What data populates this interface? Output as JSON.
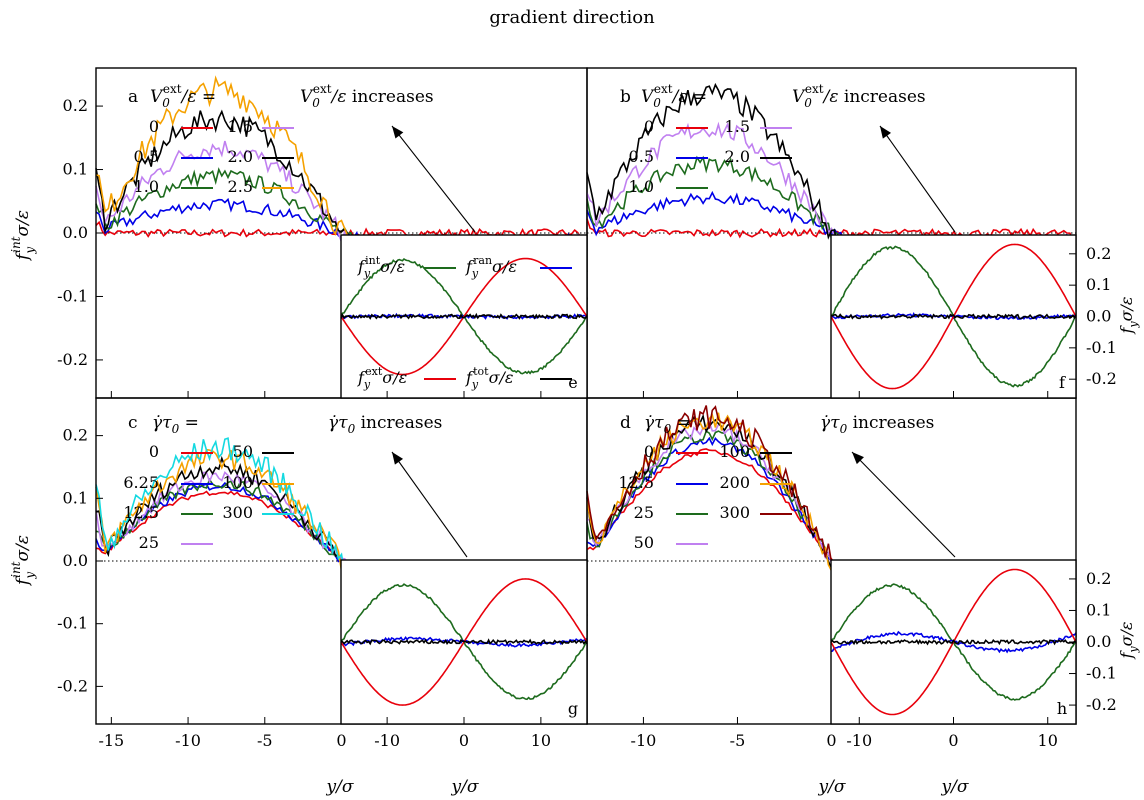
{
  "figure": {
    "title": "gradient direction",
    "ylabel_main": "f_y^int σ/ε",
    "ylabel_inset": "f_y σ/ε",
    "xlabel": "y/σ"
  },
  "colors": {
    "red": "#e8000b",
    "blue": "#0000e8",
    "green": "#1d6b1d",
    "violet": "#c080f0",
    "black": "#000000",
    "orange": "#f5a100",
    "cyan": "#14d9e0",
    "darkred": "#8b0000"
  },
  "chart_data": [
    {
      "panel": "a",
      "type": "line",
      "xlabel": "y/σ",
      "ylabel": "f_y^int σ/ε",
      "xlim": [
        -16,
        16
      ],
      "ylim": [
        -0.26,
        0.26
      ],
      "xticks": [
        -15,
        -10,
        -5,
        0
      ],
      "yticks": [
        -0.2,
        -0.1,
        0.0,
        0.1,
        0.2
      ],
      "legend_title": "V_0^ext/ε =",
      "annotation": "V_0^ext/ε increases",
      "series": [
        {
          "name": "0",
          "amplitude": 0.0
        },
        {
          "name": "0.5",
          "amplitude": 0.045
        },
        {
          "name": "1.0",
          "amplitude": 0.09
        },
        {
          "name": "1.5",
          "amplitude": 0.135
        },
        {
          "name": "2.0",
          "amplitude": 0.18
        },
        {
          "name": "2.5",
          "amplitude": 0.225
        }
      ]
    },
    {
      "panel": "b",
      "type": "line",
      "xlabel": "y/σ",
      "ylabel": "f_y^int σ/ε",
      "xlim": [
        -13,
        13
      ],
      "ylim": [
        -0.26,
        0.26
      ],
      "xticks": [
        -10,
        -5,
        0
      ],
      "yticks": [
        -0.2,
        -0.1,
        0.0,
        0.1,
        0.2
      ],
      "legend_title": "V_0^ext/ε =",
      "annotation": "V_0^ext/ε increases",
      "series": [
        {
          "name": "0",
          "amplitude": 0.0
        },
        {
          "name": "0.5",
          "amplitude": 0.055
        },
        {
          "name": "1.0",
          "amplitude": 0.11
        },
        {
          "name": "1.5",
          "amplitude": 0.165
        },
        {
          "name": "2.0",
          "amplitude": 0.22
        }
      ]
    },
    {
      "panel": "c",
      "type": "line",
      "xlabel": "y/σ",
      "ylabel": "f_y^int σ/ε",
      "xlim": [
        -16,
        16
      ],
      "ylim": [
        -0.26,
        0.26
      ],
      "xticks": [
        -15,
        -10,
        -5,
        0
      ],
      "yticks": [
        -0.2,
        -0.1,
        0.0,
        0.1,
        0.2
      ],
      "legend_title": "γ̇τ0 =",
      "annotation": "γ̇τ0 increases",
      "series": [
        {
          "name": "0",
          "amplitude": 0.11
        },
        {
          "name": "6.25",
          "amplitude": 0.12
        },
        {
          "name": "12.5",
          "amplitude": 0.125
        },
        {
          "name": "25",
          "amplitude": 0.135
        },
        {
          "name": "50",
          "amplitude": 0.15
        },
        {
          "name": "100",
          "amplitude": 0.165
        },
        {
          "name": "300",
          "amplitude": 0.18
        }
      ]
    },
    {
      "panel": "d",
      "type": "line",
      "xlabel": "y/σ",
      "ylabel": "f_y^int σ/ε",
      "xlim": [
        -13,
        13
      ],
      "ylim": [
        -0.26,
        0.26
      ],
      "xticks": [
        -10,
        -5,
        0
      ],
      "yticks": [
        -0.2,
        -0.1,
        0.0,
        0.1,
        0.2
      ],
      "legend_title": "γ̇τ0 =",
      "annotation": "γ̇τ0 increases",
      "series": [
        {
          "name": "0",
          "amplitude": 0.175
        },
        {
          "name": "12.5",
          "amplitude": 0.19
        },
        {
          "name": "25",
          "amplitude": 0.2
        },
        {
          "name": "50",
          "amplitude": 0.21
        },
        {
          "name": "100",
          "amplitude": 0.22
        },
        {
          "name": "200",
          "amplitude": 0.225
        },
        {
          "name": "300",
          "amplitude": 0.23
        }
      ]
    },
    {
      "panel": "e",
      "type": "line",
      "xlabel": "y/σ",
      "ylabel": "f_y σ/ε",
      "xlim": [
        -16,
        16
      ],
      "ylim": [
        -0.26,
        0.26
      ],
      "xticks": [
        -10,
        0,
        10
      ],
      "yticks": [
        -0.2,
        -0.1,
        0.0,
        0.1,
        0.2
      ],
      "legend": [
        "f_y^int σ/ε",
        "f_y^ran σ/ε",
        "f_y^ext σ/ε",
        "f_y^tot σ/ε"
      ],
      "series": [
        {
          "name": "f_y^int σ/ε",
          "amplitude": 0.18
        },
        {
          "name": "f_y^ran σ/ε",
          "amplitude": 0.005
        },
        {
          "name": "f_y^ext σ/ε",
          "amplitude": 0.185
        },
        {
          "name": "f_y^tot σ/ε",
          "amplitude": 0.0
        }
      ]
    },
    {
      "panel": "f",
      "type": "line",
      "xlabel": "y/σ",
      "ylabel": "f_y σ/ε",
      "xlim": [
        -13,
        13
      ],
      "ylim": [
        -0.26,
        0.26
      ],
      "xticks": [
        -10,
        0,
        10
      ],
      "yticks": [
        -0.2,
        -0.1,
        0.0,
        0.1,
        0.2
      ],
      "series": [
        {
          "name": "f_y^int σ/ε",
          "amplitude": 0.22
        },
        {
          "name": "f_y^ran σ/ε",
          "amplitude": 0.01
        },
        {
          "name": "f_y^ext σ/ε",
          "amplitude": 0.23
        },
        {
          "name": "f_y^tot σ/ε",
          "amplitude": 0.0
        }
      ]
    },
    {
      "panel": "g",
      "type": "line",
      "xlabel": "y/σ",
      "ylabel": "f_y σ/ε",
      "xlim": [
        -16,
        16
      ],
      "ylim": [
        -0.26,
        0.26
      ],
      "xticks": [
        -10,
        0,
        10
      ],
      "yticks": [
        -0.2,
        -0.1,
        0.0,
        0.1,
        0.2
      ],
      "series": [
        {
          "name": "f_y^int σ/ε",
          "amplitude": 0.18
        },
        {
          "name": "f_y^ran σ/ε",
          "amplitude": 0.025
        },
        {
          "name": "f_y^ext σ/ε",
          "amplitude": 0.2
        },
        {
          "name": "f_y^tot σ/ε",
          "amplitude": 0.0
        }
      ]
    },
    {
      "panel": "h",
      "type": "line",
      "xlabel": "y/σ",
      "ylabel": "f_y σ/ε",
      "xlim": [
        -13,
        13
      ],
      "ylim": [
        -0.26,
        0.26
      ],
      "xticks": [
        -10,
        0,
        10
      ],
      "yticks": [
        -0.2,
        -0.1,
        0.0,
        0.1,
        0.2
      ],
      "series": [
        {
          "name": "f_y^int σ/ε",
          "amplitude": 0.18
        },
        {
          "name": "f_y^ran σ/ε",
          "amplitude": 0.065
        },
        {
          "name": "f_y^ext σ/ε",
          "amplitude": 0.23
        },
        {
          "name": "f_y^tot σ/ε",
          "amplitude": 0.0
        }
      ]
    }
  ]
}
